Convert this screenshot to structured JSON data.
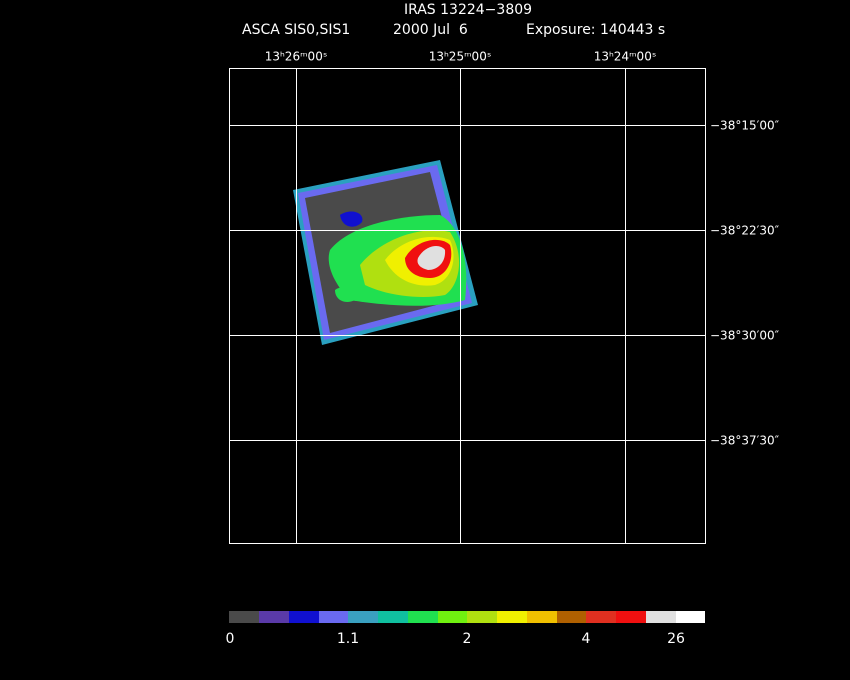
{
  "header": {
    "title": "IRAS 13224−3809",
    "instrument": "ASCA SIS0,SIS1",
    "date": "2000 Jul  6",
    "exposure": "Exposure: 140443 s"
  },
  "ra_labels": [
    "13ʰ26ᵐ00ˢ",
    "13ʰ25ᵐ00ˢ",
    "13ʰ24ᵐ00ˢ"
  ],
  "dec_labels": [
    "−38°15′00″",
    "−38°22′30″",
    "−38°30′00″",
    "−38°37′30″"
  ],
  "colorbar_labels": [
    "0",
    "1.1",
    "2",
    "4",
    "26"
  ]
}
